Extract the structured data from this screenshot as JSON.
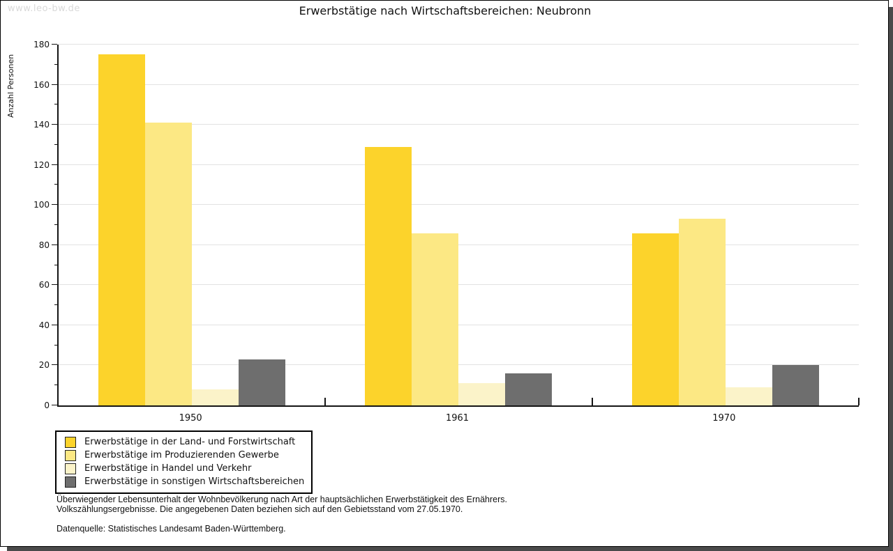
{
  "watermark": "www.leo-bw.de",
  "title": "Erwerbstätige nach Wirtschaftsbereichen: Neubronn",
  "chart_data": {
    "type": "bar",
    "title": "Erwerbstätige nach Wirtschaftsbereichen: Neubronn",
    "xlabel": "",
    "ylabel": "Anzahl Personen",
    "categories": [
      "1950",
      "1961",
      "1970"
    ],
    "series": [
      {
        "name": "Erwerbstätige in der Land- und Forstwirtschaft",
        "color": "#FCD32B",
        "values": [
          175,
          129,
          86
        ]
      },
      {
        "name": "Erwerbstätige im Produzierenden Gewerbe",
        "color": "#FCE884",
        "values": [
          141,
          86,
          93
        ]
      },
      {
        "name": "Erwerbstätige in Handel und Verkehr",
        "color": "#FBF3C9",
        "values": [
          8,
          11,
          9
        ]
      },
      {
        "name": "Erwerbstätige in sonstigen Wirtschaftsbereichen",
        "color": "#6E6E6E",
        "values": [
          23,
          16,
          20
        ]
      }
    ],
    "ylim": [
      0,
      180
    ],
    "ytick_major": 20,
    "ytick_minor": 10,
    "grid": "horizontal-major",
    "legend_position": "bottom-left"
  },
  "footnotes": {
    "line1": "Überwiegender Lebensunterhalt der Wohnbevölkerung nach Art der hauptsächlichen Erwerbstätigkeit des Ernährers.",
    "line2": "Volkszählungsergebnisse. Die angegebenen Daten beziehen sich auf den Gebietsstand vom 27.05.1970.",
    "source": "Datenquelle: Statistisches Landesamt Baden-Württemberg."
  },
  "colors": {
    "series1": "#FCD32B",
    "series2": "#FCE884",
    "series3": "#FBF3C9",
    "series4": "#6E6E6E",
    "gridline": "#e2e2e2",
    "axis": "#141414",
    "watermark": "#d9d9d9",
    "shadow": "#4a4a4a"
  }
}
